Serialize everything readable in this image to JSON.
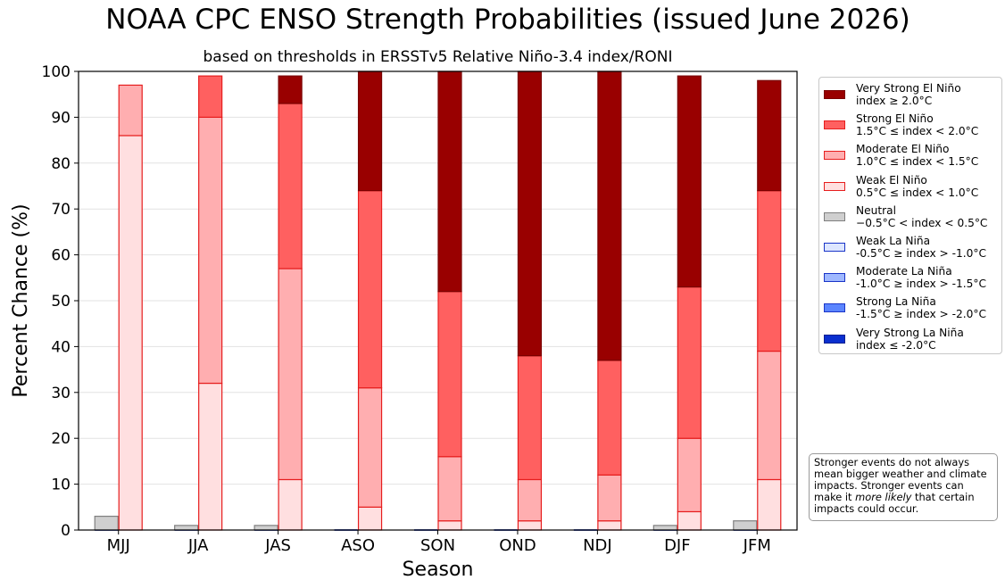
{
  "title": "NOAA CPC ENSO Strength Probabilities (issued June 2026)",
  "subtitle": "based on thresholds in ERSSTv5 Relative Niño-3.4 index/RONI",
  "note": {
    "line1": "Stronger events do not always",
    "line2": "mean bigger weather and climate",
    "line3": "impacts. Stronger events can",
    "line4_pre": "make it ",
    "line4_em": "more likely",
    "line4_post": " that certain",
    "line5": "impacts could occur."
  },
  "legend": [
    {
      "line1": "Very Strong El Niño",
      "line2": "index ≥ 2.0°C",
      "fill": "#990000",
      "edge": "#7a0000"
    },
    {
      "line1": "Strong El Niño",
      "line2": "1.5°C ≤ index < 2.0°C",
      "fill": "#ff6060",
      "edge": "#e61e1e"
    },
    {
      "line1": "Moderate El Niño",
      "line2": "1.0°C ≤ index < 1.5°C",
      "fill": "#ffaeb0",
      "edge": "#e61e1e"
    },
    {
      "line1": "Weak El Niño",
      "line2": "0.5°C ≤ index < 1.0°C",
      "fill": "#ffdfe0",
      "edge": "#e61e1e"
    },
    {
      "line1": "Neutral",
      "line2": "−0.5°C < index < 0.5°C",
      "fill": "#cfcfcf",
      "edge": "#7f7f7f"
    },
    {
      "line1": "Weak La Niña",
      "line2": "-0.5°C ≥ index > -1.0°C",
      "fill": "#dde6ff",
      "edge": "#1a35c8"
    },
    {
      "line1": "Moderate La Niña",
      "line2": "-1.0°C ≥ index > -1.5°C",
      "fill": "#9fb8ff",
      "edge": "#1a35c8"
    },
    {
      "line1": "Strong La Niña",
      "line2": "-1.5°C ≥ index > -2.0°C",
      "fill": "#5b85ff",
      "edge": "#1a35c8"
    },
    {
      "line1": "Very Strong La Niña",
      "line2": "index ≤ -2.0°C",
      "fill": "#0a2fcf",
      "edge": "#0a1f90"
    }
  ],
  "chart_data": {
    "type": "bar",
    "title": "NOAA CPC ENSO Strength Probabilities (issued June 2026)",
    "subtitle": "based on thresholds in ERSSTv5 Relative Niño-3.4 index/RONI",
    "xlabel": "Season",
    "ylabel": "Percent Chance (%)",
    "ylim": [
      0,
      100
    ],
    "yticks": [
      0,
      10,
      20,
      30,
      40,
      50,
      60,
      70,
      80,
      90,
      100
    ],
    "grid": true,
    "legend_position": "outside-right",
    "categories": [
      "MJJ",
      "JJA",
      "JAS",
      "ASO",
      "SON",
      "OND",
      "NDJ",
      "DJF",
      "JFM"
    ],
    "la_nina_stack": {
      "series": [
        {
          "name": "Weak La Niña",
          "values": [
            0,
            0,
            0,
            0,
            0,
            0,
            0,
            0,
            0
          ]
        },
        {
          "name": "Moderate La Niña",
          "values": [
            0,
            0,
            0,
            0,
            0,
            0,
            0,
            0,
            0
          ]
        },
        {
          "name": "Strong La Niña",
          "values": [
            0,
            0,
            0,
            0,
            0,
            0,
            0,
            0,
            0
          ]
        },
        {
          "name": "Very Strong La Niña",
          "values": [
            0,
            0,
            0,
            0,
            0,
            0,
            0,
            0,
            0
          ]
        }
      ]
    },
    "neutral": {
      "name": "Neutral",
      "values": [
        3,
        1,
        1,
        0,
        0,
        0,
        0,
        1,
        2
      ]
    },
    "el_nino_stack": {
      "series": [
        {
          "name": "Weak El Niño",
          "values": [
            86,
            32,
            11,
            5,
            2,
            2,
            2,
            4,
            11
          ]
        },
        {
          "name": "Moderate El Niño",
          "values": [
            11,
            58,
            46,
            26,
            14,
            9,
            10,
            16,
            28
          ]
        },
        {
          "name": "Strong El Niño",
          "values": [
            0,
            9,
            36,
            43,
            36,
            27,
            25,
            33,
            35
          ]
        },
        {
          "name": "Very Strong El Niño",
          "values": [
            0,
            0,
            6,
            26,
            48,
            62,
            63,
            46,
            24
          ]
        }
      ]
    }
  }
}
